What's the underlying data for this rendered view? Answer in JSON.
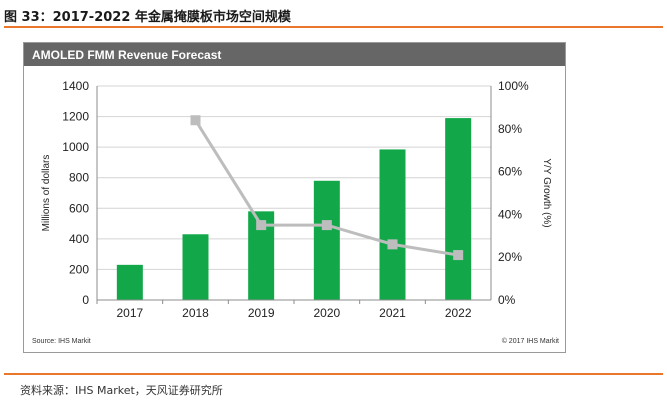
{
  "figure_title": "图 33：2017-2022 年金属掩膜板市场空间规模",
  "card_header": "AMOLED FMM Revenue Forecast",
  "source_left": "Source: IHS Markit",
  "source_right": "© 2017 IHS Markit",
  "footer_source": "资料来源：IHS Market，天风证券研究所",
  "colors": {
    "bar": "#12a84a",
    "line": "#bdbdbd",
    "accent_rule": "#e9762b",
    "header_bg": "#666666"
  },
  "chart_data": {
    "type": "bar",
    "categories": [
      "2017",
      "2018",
      "2019",
      "2020",
      "2021",
      "2022"
    ],
    "series": [
      {
        "axis": "left",
        "type": "bar",
        "values": [
          230,
          430,
          580,
          780,
          985,
          1190
        ]
      },
      {
        "axis": "right",
        "type": "line",
        "values": [
          null,
          84,
          35,
          35,
          26,
          21
        ]
      }
    ],
    "ylabel": "Millions of dollars",
    "y2label": "Y/Y Growth (%)",
    "ylim": [
      0,
      1400
    ],
    "y2lim": [
      0,
      100
    ],
    "yticks": [
      "0",
      "200",
      "400",
      "600",
      "800",
      "1000",
      "1200",
      "1400"
    ],
    "y2ticks": [
      "0%",
      "20%",
      "40%",
      "60%",
      "80%",
      "100%"
    ],
    "grid": true,
    "legend": "none"
  }
}
